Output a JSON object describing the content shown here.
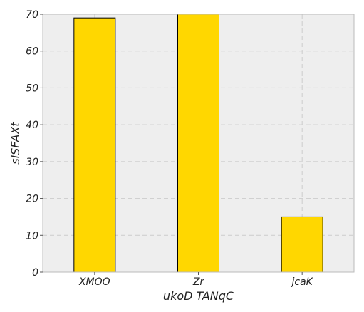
{
  "chart_data": {
    "type": "bar",
    "categories": [
      "XMOO",
      "Zr",
      "jcaK"
    ],
    "values": [
      69,
      70,
      15
    ],
    "xlabel": "ukoD TANqC",
    "ylabel": "slSFAXt",
    "ylim": [
      0,
      70
    ],
    "yticks": [
      0,
      10,
      20,
      30,
      40,
      50,
      60,
      70
    ],
    "grid": true,
    "bar_color": "#ffd700",
    "bar_edge_color": "#000000",
    "plot_background": "#eeeeee",
    "grid_color": "#cccccc"
  }
}
